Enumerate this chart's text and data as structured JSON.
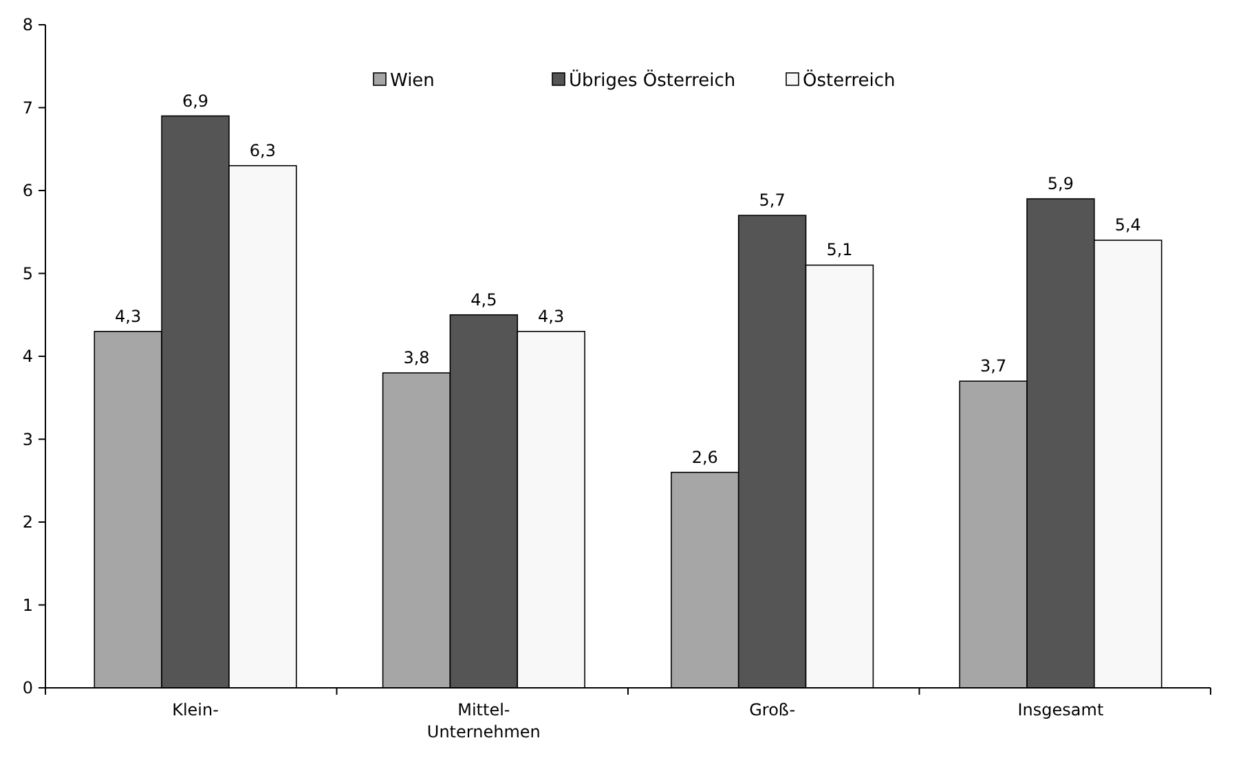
{
  "chart_data": {
    "type": "bar",
    "categories": [
      "Klein-",
      "Mittel- Unternehmen",
      "Groß-",
      "Insgesamt"
    ],
    "series": [
      {
        "name": "Wien",
        "color": "#a6a6a6",
        "values": [
          4.3,
          3.8,
          2.6,
          3.7
        ],
        "value_labels": [
          "4,3",
          "3,8",
          "2,6",
          "3,7"
        ]
      },
      {
        "name": "Übriges Österreich",
        "color": "#555555",
        "values": [
          6.9,
          4.5,
          5.7,
          5.9
        ],
        "value_labels": [
          "6,9",
          "4,5",
          "5,7",
          "5,9"
        ]
      },
      {
        "name": "Österreich",
        "color": "#f8f8f8",
        "values": [
          6.3,
          4.3,
          5.1,
          5.4
        ],
        "value_labels": [
          "6,3",
          "4,3",
          "5,1",
          "5,4"
        ]
      }
    ],
    "ylim": [
      0,
      8
    ],
    "yticks": [
      0,
      1,
      2,
      3,
      4,
      5,
      6,
      7,
      8
    ],
    "grid": false,
    "legend": "top"
  }
}
